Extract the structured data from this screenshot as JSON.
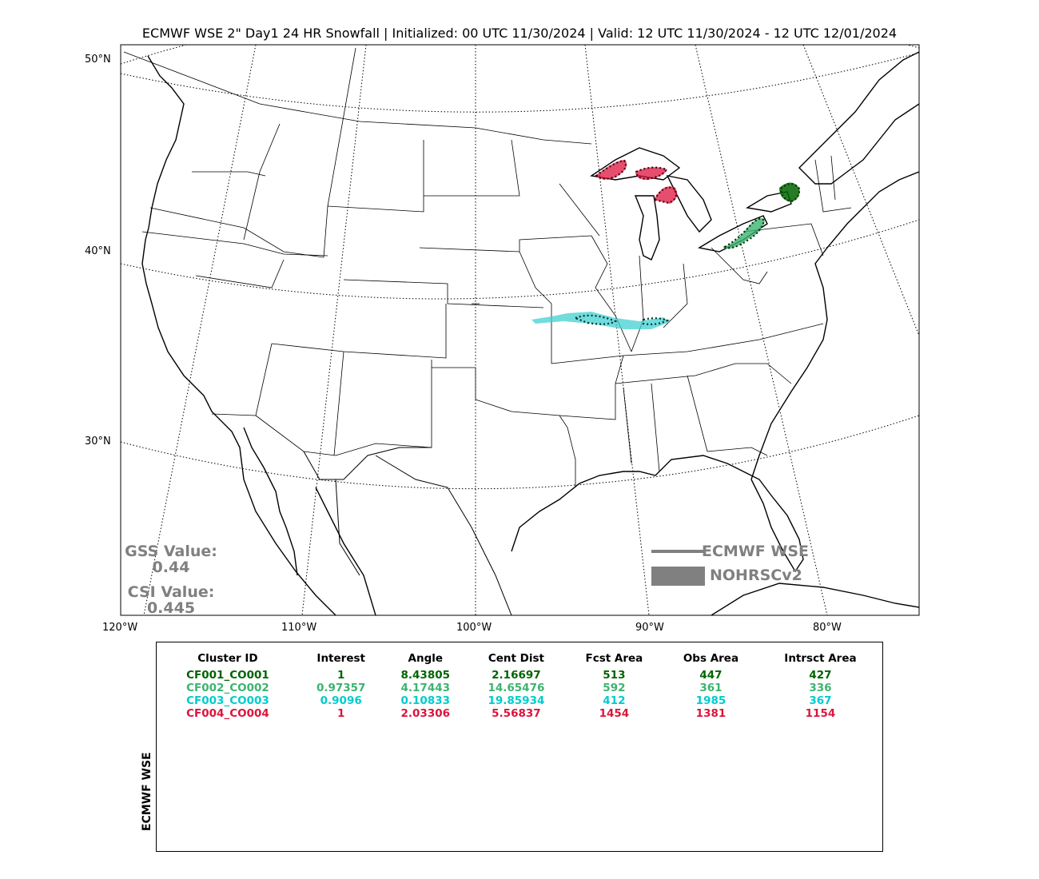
{
  "title": "ECMWF WSE 2\" Day1 24 HR Snowfall | Initialized: 00 UTC 11/30/2024 | Valid: 12 UTC 11/30/2024 - 12 UTC 12/01/2024",
  "lat_labels": [
    "50°N",
    "40°N",
    "30°N"
  ],
  "lon_labels": [
    "120°W",
    "110°W",
    "100°W",
    "90°W",
    "80°W"
  ],
  "scores": {
    "gss_label": "GSS Value:",
    "gss_value": "0.44",
    "csi_label": "CSI Value:",
    "csi_value": "0.445"
  },
  "legend": {
    "forecast_label": "ECMWF WSE",
    "observed_label": "NOHRSCv2",
    "color": "#808080"
  },
  "table": {
    "side_label": "ECMWF WSE",
    "headers": [
      "Cluster ID",
      "Interest",
      "Angle",
      "Cent Dist",
      "Fcst Area",
      "Obs Area",
      "Intrsct Area"
    ],
    "rows": [
      {
        "color": "#006400",
        "cells": [
          "CF001_CO001",
          "1",
          "8.43805",
          "2.16697",
          "513",
          "447",
          "427"
        ]
      },
      {
        "color": "#3cb371",
        "cells": [
          "CF002_CO002",
          "0.97357",
          "4.17443",
          "14.65476",
          "592",
          "361",
          "336"
        ]
      },
      {
        "color": "#00cccc",
        "cells": [
          "CF003_CO003",
          "0.9096",
          "0.10833",
          "19.85934",
          "412",
          "1985",
          "367"
        ]
      },
      {
        "color": "#dc143c",
        "cells": [
          "CF004_CO004",
          "1",
          "2.03306",
          "5.56837",
          "1454",
          "1381",
          "1154"
        ]
      }
    ]
  },
  "clusters": [
    {
      "name": "CF001_CO001",
      "color": "#006400",
      "region": "Lake Ontario east shore"
    },
    {
      "name": "CF002_CO002",
      "color": "#3cb371",
      "region": "Lake Erie south shore"
    },
    {
      "name": "CF003_CO003",
      "color": "#00cccc",
      "region": "Missouri-Illinois"
    },
    {
      "name": "CF004_CO004",
      "color": "#dc143c",
      "region": "Upper Michigan"
    }
  ]
}
